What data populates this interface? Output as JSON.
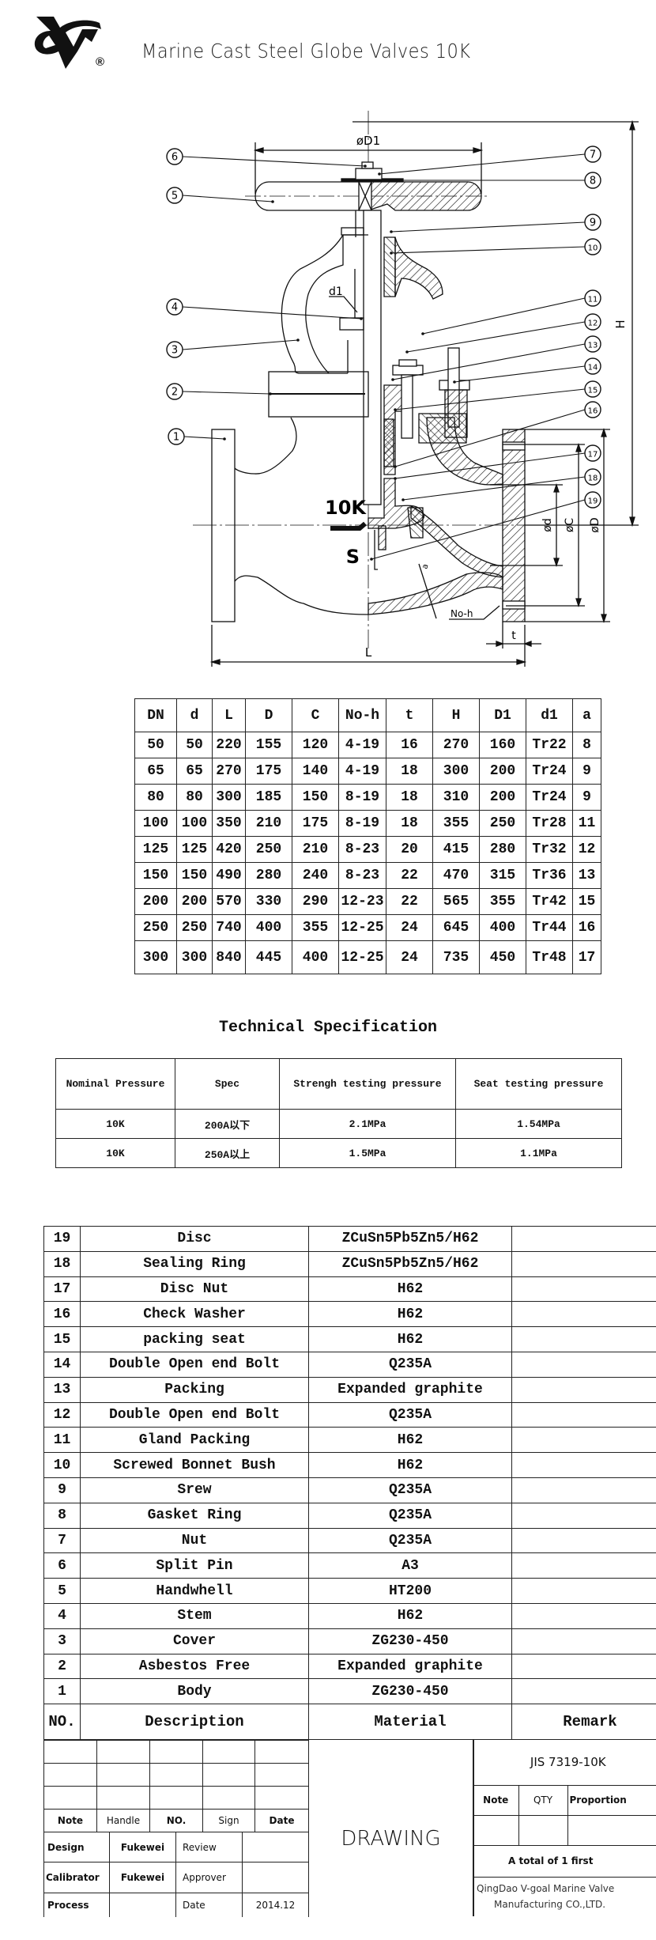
{
  "header": {
    "logo_text": "VG",
    "registered_mark": "®",
    "title": "Marine Cast Steel Globe Valves 10K"
  },
  "drawing": {
    "callouts": [
      "1",
      "2",
      "3",
      "4",
      "5",
      "6",
      "7",
      "8",
      "9",
      "10",
      "11",
      "12",
      "13",
      "14",
      "15",
      "16",
      "17",
      "18",
      "19"
    ],
    "dim_labels": {
      "D1": "øD1",
      "H": "H",
      "d1": "d1",
      "d": "ød",
      "C": "øC",
      "D": "øD",
      "L": "L",
      "t": "t",
      "noh": "No-h",
      "a": "a"
    },
    "body_marks": {
      "pressure": "10K",
      "material": "S"
    }
  },
  "dimensions_table": {
    "headers": [
      "DN",
      "d",
      "L",
      "D",
      "C",
      "No-h",
      "t",
      "H",
      "D1",
      "d1",
      "a"
    ],
    "rows": [
      [
        "50",
        "50",
        "220",
        "155",
        "120",
        "4-19",
        "16",
        "270",
        "160",
        "Tr22",
        "8"
      ],
      [
        "65",
        "65",
        "270",
        "175",
        "140",
        "4-19",
        "18",
        "300",
        "200",
        "Tr24",
        "9"
      ],
      [
        "80",
        "80",
        "300",
        "185",
        "150",
        "8-19",
        "18",
        "310",
        "200",
        "Tr24",
        "9"
      ],
      [
        "100",
        "100",
        "350",
        "210",
        "175",
        "8-19",
        "18",
        "355",
        "250",
        "Tr28",
        "11"
      ],
      [
        "125",
        "125",
        "420",
        "250",
        "210",
        "8-23",
        "20",
        "415",
        "280",
        "Tr32",
        "12"
      ],
      [
        "150",
        "150",
        "490",
        "280",
        "240",
        "8-23",
        "22",
        "470",
        "315",
        "Tr36",
        "13"
      ],
      [
        "200",
        "200",
        "570",
        "330",
        "290",
        "12-23",
        "22",
        "565",
        "355",
        "Tr42",
        "15"
      ],
      [
        "250",
        "250",
        "740",
        "400",
        "355",
        "12-25",
        "24",
        "645",
        "400",
        "Tr44",
        "16"
      ],
      [
        "300",
        "300",
        "840",
        "445",
        "400",
        "12-25",
        "24",
        "735",
        "450",
        "Tr48",
        "17"
      ]
    ]
  },
  "technical_specification": {
    "title": "Technical Specification",
    "headers": [
      "Nominal Pressure",
      "Spec",
      "Strengh testing pressure",
      "Seat testing pressure"
    ],
    "rows": [
      [
        "10K",
        "200A以下",
        "2.1MPa",
        "1.54MPa"
      ],
      [
        "10K",
        "250A以上",
        "1.5MPa",
        "1.1MPa"
      ]
    ]
  },
  "parts_list": {
    "headers": [
      "NO.",
      "Description",
      "Material",
      "Remark"
    ],
    "rows": [
      [
        "19",
        "Disc",
        "ZCuSn5Pb5Zn5/H62",
        ""
      ],
      [
        "18",
        "Sealing Ring",
        "ZCuSn5Pb5Zn5/H62",
        ""
      ],
      [
        "17",
        "Disc Nut",
        "H62",
        ""
      ],
      [
        "16",
        "Check Washer",
        "H62",
        ""
      ],
      [
        "15",
        "packing seat",
        "H62",
        ""
      ],
      [
        "14",
        "Double Open end Bolt",
        "Q235A",
        ""
      ],
      [
        "13",
        "Packing",
        "Expanded graphite",
        ""
      ],
      [
        "12",
        "Double Open end Bolt",
        "Q235A",
        ""
      ],
      [
        "11",
        "Gland Packing",
        "H62",
        ""
      ],
      [
        "10",
        "Screwed Bonnet Bush",
        "H62",
        ""
      ],
      [
        "9",
        "Srew",
        "Q235A",
        ""
      ],
      [
        "8",
        "Gasket Ring",
        "Q235A",
        ""
      ],
      [
        "7",
        "Nut",
        "Q235A",
        ""
      ],
      [
        "6",
        "Split Pin",
        "A3",
        ""
      ],
      [
        "5",
        "Handwhell",
        "HT200",
        ""
      ],
      [
        "4",
        "Stem",
        "H62",
        ""
      ],
      [
        "3",
        "Cover",
        "ZG230-450",
        ""
      ],
      [
        "2",
        "Asbestos Free",
        "Expanded graphite",
        ""
      ],
      [
        "1",
        "Body",
        "ZG230-450",
        ""
      ]
    ]
  },
  "title_block": {
    "revision_headers": [
      "Note",
      "Handle",
      "NO.",
      "Sign",
      "Date"
    ],
    "design_label": "Design",
    "design_value": "Fukewei",
    "review_label": "Review",
    "review_value": "",
    "calibrator_label": "Calibrator",
    "calibrator_value": "Fukewei",
    "approver_label": "Approver",
    "approver_value": "",
    "process_label": "Process",
    "process_value": "",
    "date_label": "Date",
    "date_value": "2014.12",
    "drawing_label": "DRAWING",
    "standard": "JIS 7319-10K",
    "note_label": "Note",
    "qty_label": "QTY",
    "proportion_label": "Proportion",
    "sheets": "A total of 1 first",
    "company_line1": "QingDao V-goal Marine Valve",
    "company_line2": "Manufacturing CO.,LTD."
  }
}
